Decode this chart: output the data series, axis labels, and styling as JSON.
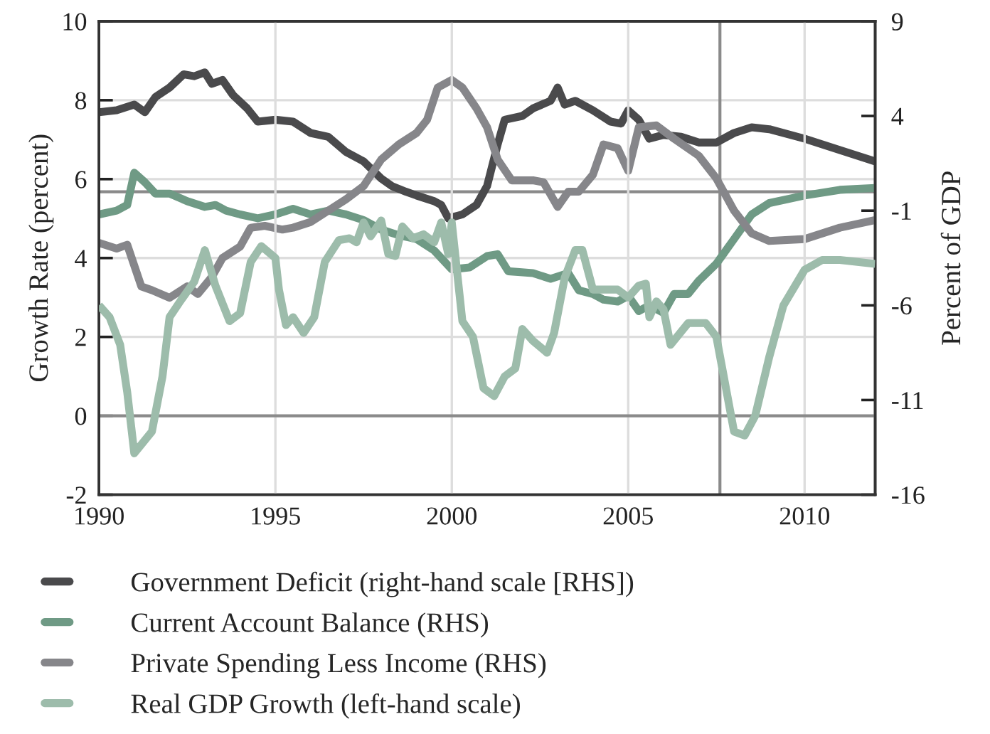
{
  "chart_data": {
    "type": "line",
    "xlabel": null,
    "ylabel": "Growth Rate (percent)",
    "y2label": "Percent of GDP",
    "xlim": [
      1990,
      2012
    ],
    "xticks": [
      1990,
      1995,
      2000,
      2005,
      2010
    ],
    "ylim": [
      -2,
      10
    ],
    "yticks": [
      -2,
      0,
      2,
      4,
      6,
      8,
      10
    ],
    "y2lim": [
      -16,
      9
    ],
    "y2ticks": [
      -16,
      -11,
      -6,
      -1,
      4,
      9
    ],
    "grid": true,
    "legend": "bottom",
    "line_style": "solid",
    "marker": "none",
    "ref_lines": [
      {
        "axis": "y",
        "value": 0,
        "label": null,
        "color": "#8a8a8a"
      },
      {
        "axis": "y2",
        "value": 0,
        "label": null,
        "color": "#8a8a8a"
      },
      {
        "axis": "x",
        "value": 2007.6,
        "label": null,
        "color": "#8a8a8a"
      }
    ],
    "series": [
      {
        "name": "Government Deficit (right-hand scale [RHS])",
        "color": "#4a4a4c",
        "axis": "y2",
        "x": [
          1990,
          1990.5,
          1991,
          1991.3,
          1991.6,
          1992,
          1992.4,
          1992.7,
          1993,
          1993.2,
          1993.5,
          1993.8,
          1994.2,
          1994.5,
          1995,
          1995.5,
          1996,
          1996.5,
          1997,
          1997.5,
          1998,
          1998.3,
          1998.7,
          1999,
          1999.5,
          1999.7,
          1999.9,
          2000.3,
          2000.7,
          2001,
          2001.3,
          2001.5,
          2002,
          2002.3,
          2002.8,
          2003,
          2003.2,
          2003.5,
          2004,
          2004.5,
          2004.8,
          2005,
          2005.3,
          2005.6,
          2006,
          2006.5,
          2007,
          2007.5,
          2008,
          2008.5,
          2009,
          2010,
          2011,
          2012
        ],
        "values": [
          4.2,
          4.3,
          4.6,
          4.2,
          5.0,
          5.5,
          6.2,
          6.1,
          6.3,
          5.7,
          5.9,
          5.1,
          4.4,
          3.7,
          3.8,
          3.7,
          3.1,
          2.9,
          2.1,
          1.6,
          0.7,
          0.3,
          0.0,
          -0.2,
          -0.5,
          -0.7,
          -1.4,
          -1.2,
          -0.7,
          0.3,
          2.5,
          3.8,
          4.0,
          4.4,
          4.8,
          5.5,
          4.6,
          4.8,
          4.3,
          3.7,
          3.6,
          4.3,
          3.8,
          2.8,
          3.0,
          2.9,
          2.6,
          2.6,
          3.1,
          3.4,
          3.3,
          2.8,
          2.2,
          1.6
        ]
      },
      {
        "name": "Current Account Balance (RHS)",
        "color": "#6f9a85",
        "axis": "y2",
        "x": [
          1990,
          1990.5,
          1990.8,
          1991,
          1991.3,
          1991.6,
          1992,
          1992.5,
          1993,
          1993.3,
          1993.6,
          1994,
          1994.5,
          1995,
          1995.5,
          1996,
          1996.5,
          1997,
          1997.5,
          1998,
          1998.5,
          1999,
          1999.5,
          2000,
          2000.5,
          2001,
          2001.3,
          2001.6,
          2002.3,
          2002.8,
          2003.3,
          2003.6,
          2004,
          2004.3,
          2004.7,
          2005,
          2005.3,
          2005.6,
          2006,
          2006.3,
          2006.7,
          2007,
          2007.5,
          2008,
          2008.5,
          2009,
          2010,
          2011,
          2012
        ],
        "values": [
          -1.2,
          -1.0,
          -0.7,
          1.0,
          0.5,
          -0.1,
          -0.1,
          -0.5,
          -0.8,
          -0.7,
          -1.0,
          -1.2,
          -1.4,
          -1.2,
          -0.9,
          -1.2,
          -1.0,
          -1.2,
          -1.5,
          -2.0,
          -2.3,
          -2.5,
          -3.1,
          -4.1,
          -4.0,
          -3.4,
          -3.3,
          -4.2,
          -4.3,
          -4.6,
          -4.3,
          -5.2,
          -5.4,
          -5.7,
          -5.8,
          -5.5,
          -6.3,
          -6.0,
          -6.4,
          -5.4,
          -5.4,
          -4.7,
          -3.8,
          -2.5,
          -1.2,
          -0.6,
          -0.2,
          0.1,
          0.2
        ]
      },
      {
        "name": "Private Spending Less Income (RHS)",
        "color": "#86868a",
        "axis": "y2",
        "x": [
          1990,
          1990.5,
          1990.8,
          1991.2,
          1991.5,
          1992,
          1992.5,
          1992.8,
          1993.2,
          1993.5,
          1994,
          1994.3,
          1994.7,
          1995.2,
          1995.5,
          1996,
          1996.5,
          1997,
          1997.5,
          1998,
          1998.5,
          1999,
          1999.3,
          1999.6,
          2000,
          2000.3,
          2000.7,
          2001,
          2001.3,
          2001.7,
          2002.3,
          2002.6,
          2003,
          2003.3,
          2003.6,
          2004,
          2004.3,
          2004.7,
          2005,
          2005.3,
          2005.8,
          2006.3,
          2007,
          2007.5,
          2008,
          2008.5,
          2009,
          2010,
          2011,
          2012
        ],
        "values": [
          -2.7,
          -3.0,
          -2.8,
          -5.0,
          -5.2,
          -5.6,
          -5.0,
          -5.4,
          -4.5,
          -3.5,
          -2.9,
          -1.9,
          -1.8,
          -2.0,
          -1.9,
          -1.6,
          -1.0,
          -0.4,
          0.3,
          1.7,
          2.5,
          3.1,
          3.8,
          5.5,
          5.9,
          5.5,
          4.4,
          3.4,
          1.7,
          0.6,
          0.6,
          0.5,
          -0.8,
          0.0,
          0.0,
          0.9,
          2.5,
          2.3,
          1.1,
          3.4,
          3.5,
          2.8,
          1.9,
          0.7,
          -1.0,
          -2.2,
          -2.6,
          -2.5,
          -1.9,
          -1.5
        ]
      },
      {
        "name": "Real GDP Growth (left-hand scale)",
        "color": "#9dbcab",
        "axis": "y",
        "x": [
          1990,
          1990.3,
          1990.6,
          1990.8,
          1991,
          1991.5,
          1991.8,
          1992,
          1992.3,
          1992.7,
          1993,
          1993.3,
          1993.7,
          1994,
          1994.3,
          1994.6,
          1995,
          1995.1,
          1995.3,
          1995.5,
          1995.8,
          1996.1,
          1996.4,
          1996.8,
          1997.1,
          1997.3,
          1997.5,
          1997.7,
          1998,
          1998.2,
          1998.4,
          1998.6,
          1998.9,
          1999.2,
          1999.5,
          1999.7,
          1999.9,
          2000,
          2000.3,
          2000.6,
          2000.9,
          2001.2,
          2001.5,
          2001.8,
          2002,
          2002.3,
          2002.7,
          2002.9,
          2003.2,
          2003.5,
          2003.7,
          2004,
          2004.3,
          2004.7,
          2005,
          2005.3,
          2005.5,
          2005.6,
          2005.8,
          2006,
          2006.2,
          2006.7,
          2007.2,
          2007.5,
          2008,
          2008.3,
          2008.6,
          2009,
          2009.4,
          2010,
          2010.5,
          2011,
          2012
        ],
        "values": [
          2.8,
          2.5,
          1.8,
          0.6,
          -0.95,
          -0.4,
          1.0,
          2.5,
          2.9,
          3.4,
          4.2,
          3.3,
          2.4,
          2.6,
          3.9,
          4.3,
          4.0,
          3.2,
          2.3,
          2.5,
          2.1,
          2.5,
          3.9,
          4.45,
          4.5,
          4.4,
          4.9,
          4.55,
          4.95,
          4.1,
          4.05,
          4.8,
          4.5,
          4.6,
          4.4,
          4.9,
          4.1,
          4.9,
          2.4,
          2.0,
          0.7,
          0.5,
          1.0,
          1.2,
          2.2,
          1.9,
          1.6,
          2.1,
          3.5,
          4.2,
          4.2,
          3.2,
          3.2,
          3.2,
          3.0,
          3.3,
          3.35,
          2.5,
          2.9,
          2.7,
          1.8,
          2.35,
          2.35,
          2.0,
          -0.4,
          -0.5,
          0.0,
          1.5,
          2.8,
          3.7,
          3.95,
          3.95,
          3.85
        ]
      }
    ]
  }
}
